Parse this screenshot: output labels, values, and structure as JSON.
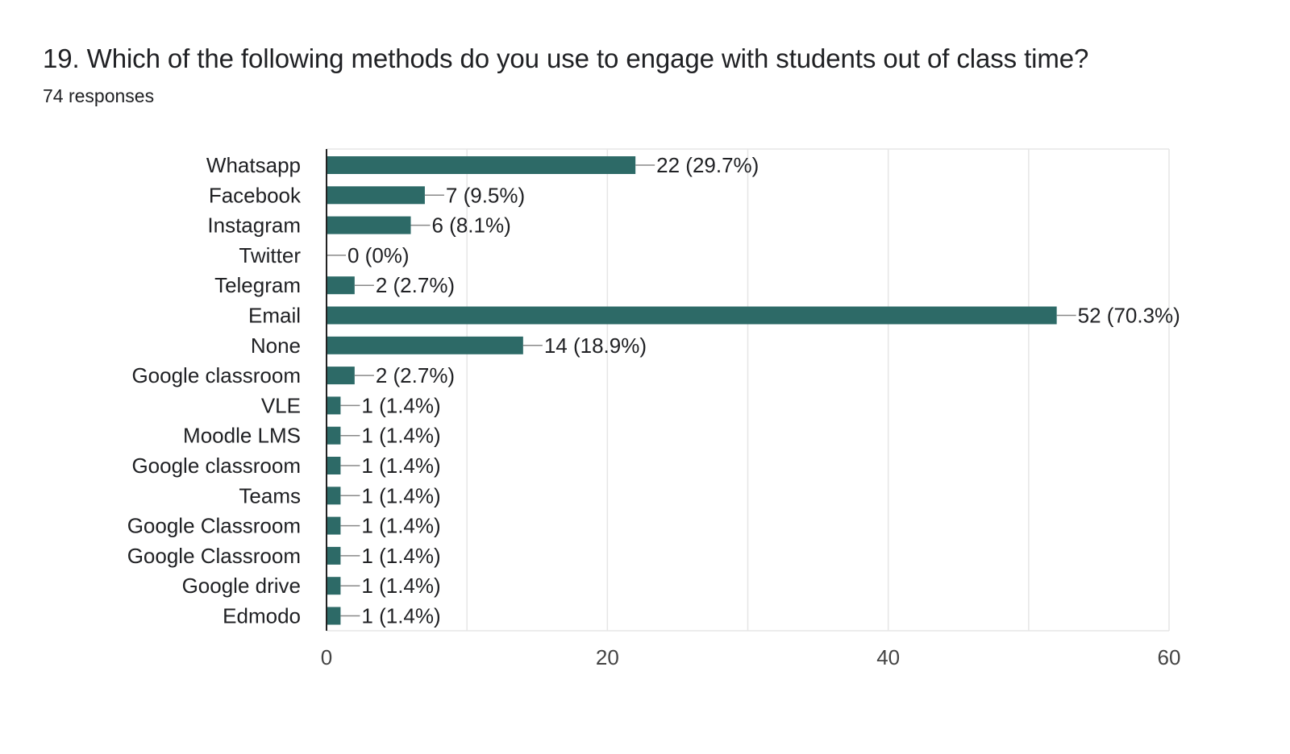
{
  "question": {
    "title": "19. Which of the following methods do you use to engage with students out of class time?",
    "responses": "74 responses"
  },
  "colors": {
    "bar": "#2d6a67",
    "grid": "#e6e6e6",
    "axis": "#222222",
    "leader": "#888888"
  },
  "chart_data": {
    "type": "bar",
    "orientation": "horizontal",
    "categories": [
      "Whatsapp",
      "Facebook",
      "Instagram",
      "Twitter",
      "Telegram",
      "Email",
      "None",
      "Google classroom",
      "VLE",
      "Moodle LMS",
      "Google classroom",
      "Teams",
      "Google Classroom",
      "Google Classroom",
      "Google drive",
      "Edmodo"
    ],
    "values": [
      22,
      7,
      6,
      0,
      2,
      52,
      14,
      2,
      1,
      1,
      1,
      1,
      1,
      1,
      1,
      1
    ],
    "data_labels": [
      "22 (29.7%)",
      "7 (9.5%)",
      "6 (8.1%)",
      "0 (0%)",
      "2 (2.7%)",
      "52 (70.3%)",
      "14 (18.9%)",
      "2 (2.7%)",
      "1 (1.4%)",
      "1 (1.4%)",
      "1 (1.4%)",
      "1 (1.4%)",
      "1 (1.4%)",
      "1 (1.4%)",
      "1 (1.4%)",
      "1 (1.4%)"
    ],
    "xlim": [
      0,
      60
    ],
    "xticks": [
      0,
      20,
      40,
      60
    ],
    "grid": true,
    "legend": "none"
  }
}
